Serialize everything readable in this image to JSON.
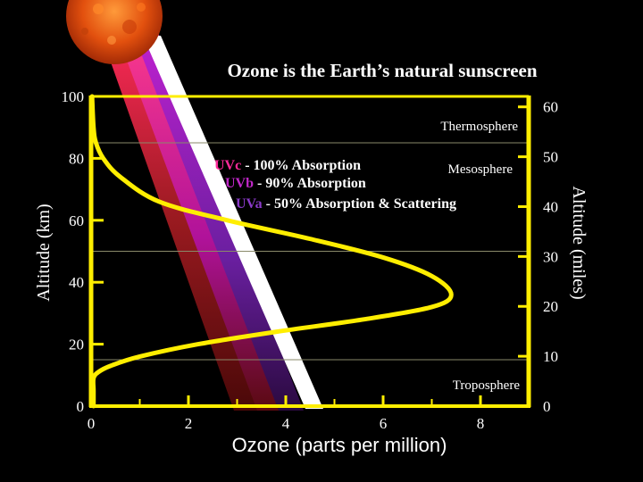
{
  "chart_data": {
    "type": "line",
    "title": "Ozone is the Earth’s natural sunscreen",
    "xlabel": "Ozone (parts per million)",
    "ylabel": "Altitude (km)",
    "y2label": "Altitude (miles)",
    "xlim": [
      0,
      9
    ],
    "ylim": [
      0,
      100
    ],
    "y2lim": [
      0,
      62.1
    ],
    "x_ticks": [
      "0",
      "2",
      "4",
      "6",
      "8"
    ],
    "x_tick_values": [
      0,
      2,
      4,
      6,
      8
    ],
    "y_ticks": [
      "0",
      "20",
      "40",
      "60",
      "80",
      "100"
    ],
    "y_tick_values": [
      0,
      20,
      40,
      60,
      80,
      100
    ],
    "y2_ticks": [
      "0",
      "10",
      "20",
      "30",
      "40",
      "50",
      "60"
    ],
    "y2_tick_values": [
      0,
      10,
      20,
      30,
      40,
      50,
      60
    ],
    "grid": false,
    "series": [
      {
        "color": "#ffee00",
        "x": [
          0.02,
          0.05,
          0.1,
          0.25,
          0.6,
          1.4,
          2.8,
          4.5,
          6.0,
          7.0,
          7.4,
          7.0,
          5.6,
          3.8,
          2.2,
          1.0,
          0.4,
          0.15,
          0.05,
          0.05,
          0.05
        ],
        "y": [
          100,
          90,
          85,
          80,
          74,
          66,
          60,
          54,
          48,
          42,
          36,
          32,
          28,
          24,
          20,
          16,
          13,
          11,
          9,
          5,
          0
        ]
      }
    ],
    "layers": [
      {
        "label": "Thermosphere",
        "boundary_km": 85
      },
      {
        "label": "Mesosphere",
        "boundary_km": 50
      },
      {
        "label": "Troposphere",
        "boundary_km": 15
      }
    ],
    "annotations": [
      {
        "band": "UVc",
        "text": " - 100% Absorption",
        "color": "#ff2a9a"
      },
      {
        "band": "UVb",
        "text": " - 90% Absorption",
        "color": "#c028c8"
      },
      {
        "band": "UVa",
        "text": " - 50% Absorption & Scattering",
        "color": "#8a3ac8"
      }
    ],
    "ray_colors": [
      "#7a1a1a",
      "#b0129a",
      "#6a1fa0",
      "#ffffff"
    ],
    "sun_color": "#e85a10"
  }
}
